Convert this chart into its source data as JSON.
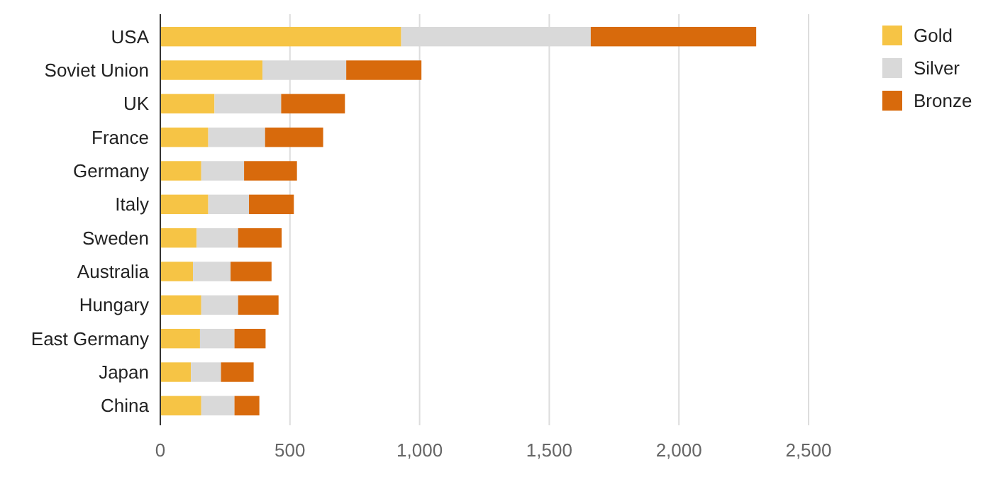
{
  "chart_data": {
    "type": "bar",
    "orientation": "horizontal",
    "stacked": true,
    "categories": [
      "USA",
      "Soviet Union",
      "UK",
      "France",
      "Germany",
      "Italy",
      "Sweden",
      "Australia",
      "Hungary",
      "East Germany",
      "Japan",
      "China"
    ],
    "series": [
      {
        "name": "Gold",
        "color": "#f6c445",
        "values": [
          929,
          394,
          209,
          185,
          158,
          185,
          140,
          126,
          158,
          153,
          118,
          158
        ]
      },
      {
        "name": "Silver",
        "color": "#d9d9d9",
        "values": [
          731,
          323,
          257,
          219,
          165,
          157,
          160,
          145,
          142,
          133,
          116,
          128
        ]
      },
      {
        "name": "Bronze",
        "color": "#d86a0c",
        "values": [
          638,
          290,
          246,
          224,
          204,
          173,
          168,
          158,
          156,
          120,
          126,
          96
        ]
      }
    ],
    "xlim": [
      0,
      2500
    ],
    "xticks": [
      0,
      {
        "value": 500,
        "label": "500"
      },
      {
        "value": 1000,
        "label": "1,000"
      },
      {
        "value": 1500,
        "label": "1,500"
      },
      {
        "value": 2000,
        "label": "2,000"
      },
      {
        "value": 2500,
        "label": "2,500"
      }
    ],
    "grid": "x",
    "legend": "top right"
  }
}
